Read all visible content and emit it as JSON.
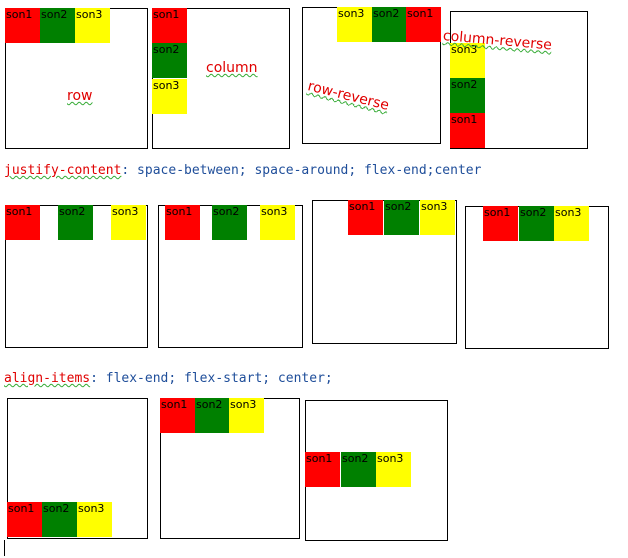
{
  "rows": [
    {
      "boxes": [
        {
          "label": "row",
          "items": [
            {
              "text": "son1",
              "color": "#ff0000"
            },
            {
              "text": "son2",
              "color": "#008000"
            },
            {
              "text": "son3",
              "color": "#ffff00"
            }
          ]
        },
        {
          "label": "column",
          "items": [
            {
              "text": "son1",
              "color": "#ff0000"
            },
            {
              "text": "son2",
              "color": "#008000"
            },
            {
              "text": "son3",
              "color": "#ffff00"
            }
          ]
        },
        {
          "label": "row-reverse",
          "items": [
            {
              "text": "son3",
              "color": "#ffff00"
            },
            {
              "text": "son2",
              "color": "#008000"
            },
            {
              "text": "son1",
              "color": "#ff0000"
            }
          ]
        },
        {
          "label": "column-reverse",
          "items": [
            {
              "text": "son3",
              "color": "#ffff00"
            },
            {
              "text": "son2",
              "color": "#008000"
            },
            {
              "text": "son1",
              "color": "#ff0000"
            }
          ]
        }
      ]
    },
    {
      "boxes": [
        {
          "items": [
            {
              "text": "son1",
              "color": "#ff0000"
            },
            {
              "text": "son2",
              "color": "#008000"
            },
            {
              "text": "son3",
              "color": "#ffff00"
            }
          ]
        },
        {
          "items": [
            {
              "text": "son1",
              "color": "#ff0000"
            },
            {
              "text": "son2",
              "color": "#008000"
            },
            {
              "text": "son3",
              "color": "#ffff00"
            }
          ]
        },
        {
          "items": [
            {
              "text": "son1",
              "color": "#ff0000"
            },
            {
              "text": "son2",
              "color": "#008000"
            },
            {
              "text": "son3",
              "color": "#ffff00"
            }
          ]
        },
        {
          "items": [
            {
              "text": "son1",
              "color": "#ff0000"
            },
            {
              "text": "son2",
              "color": "#008000"
            },
            {
              "text": "son3",
              "color": "#ffff00"
            }
          ]
        }
      ]
    },
    {
      "boxes": [
        {
          "items": [
            {
              "text": "son1",
              "color": "#ff0000"
            },
            {
              "text": "son2",
              "color": "#008000"
            },
            {
              "text": "son3",
              "color": "#ffff00"
            }
          ]
        },
        {
          "items": [
            {
              "text": "son1",
              "color": "#ff0000"
            },
            {
              "text": "son2",
              "color": "#008000"
            },
            {
              "text": "son3",
              "color": "#ffff00"
            }
          ]
        },
        {
          "items": [
            {
              "text": "son1",
              "color": "#ff0000"
            },
            {
              "text": "son2",
              "color": "#008000"
            },
            {
              "text": "son3",
              "color": "#ffff00"
            }
          ]
        }
      ]
    }
  ],
  "captions": [
    {
      "keyword": "justify-content",
      "rest": ": space-between; space-around; flex-end;center"
    },
    {
      "keyword": "align-items",
      "rest": ": flex-end; flex-start; center;"
    }
  ]
}
